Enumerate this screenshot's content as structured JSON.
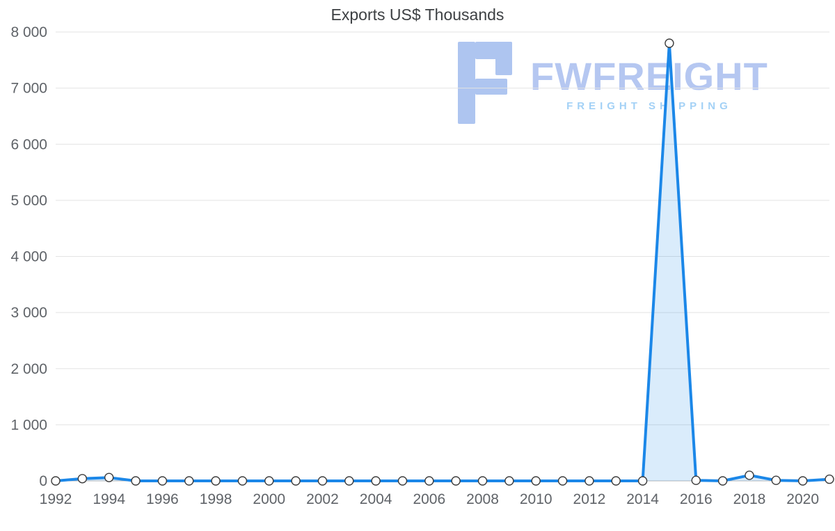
{
  "page": {
    "background": "#ffffff"
  },
  "watermark": {
    "brand": "FWFREIGHT",
    "tagline": "FREIGHT SHIPPING",
    "brand_color": "#b5c7f1",
    "tagline_color": "#a3d1f6",
    "logo_color": "#aec5f0"
  },
  "chart_data": {
    "type": "line",
    "title": "Exports US$ Thousands",
    "xlabel": "",
    "ylabel": "",
    "x": [
      1992,
      1993,
      1994,
      1995,
      1996,
      1997,
      1998,
      1999,
      2000,
      2001,
      2002,
      2003,
      2004,
      2005,
      2006,
      2007,
      2008,
      2009,
      2010,
      2011,
      2012,
      2013,
      2014,
      2015,
      2016,
      2017,
      2018,
      2019,
      2020,
      2021
    ],
    "series": [
      {
        "name": "Exports US$ Thousands",
        "values": [
          0,
          40,
          60,
          0,
          0,
          0,
          0,
          0,
          0,
          0,
          0,
          0,
          0,
          0,
          0,
          0,
          0,
          0,
          0,
          0,
          0,
          0,
          0,
          7800,
          10,
          0,
          100,
          10,
          0,
          30
        ]
      }
    ],
    "ylim": [
      0,
      8000
    ],
    "yticks": [
      0,
      1000,
      2000,
      3000,
      4000,
      5000,
      6000,
      7000,
      8000
    ],
    "ytick_labels": [
      "0",
      "1 000",
      "2 000",
      "3 000",
      "4 000",
      "5 000",
      "6 000",
      "7 000",
      "8 000"
    ],
    "xticks": [
      1992,
      1994,
      1996,
      1998,
      2000,
      2002,
      2004,
      2006,
      2008,
      2010,
      2012,
      2014,
      2016,
      2018,
      2020
    ],
    "grid": "horizontal",
    "legend": "none",
    "line_color": "#1b87e8",
    "fill_color": "rgba(27,135,232,0.16)",
    "marker_fill": "#ffffff",
    "marker_stroke": "#3c3c3c",
    "grid_color": "#e3e3e3",
    "axis_color": "#b9b9b9",
    "tick_label_color": "#5f6368"
  }
}
